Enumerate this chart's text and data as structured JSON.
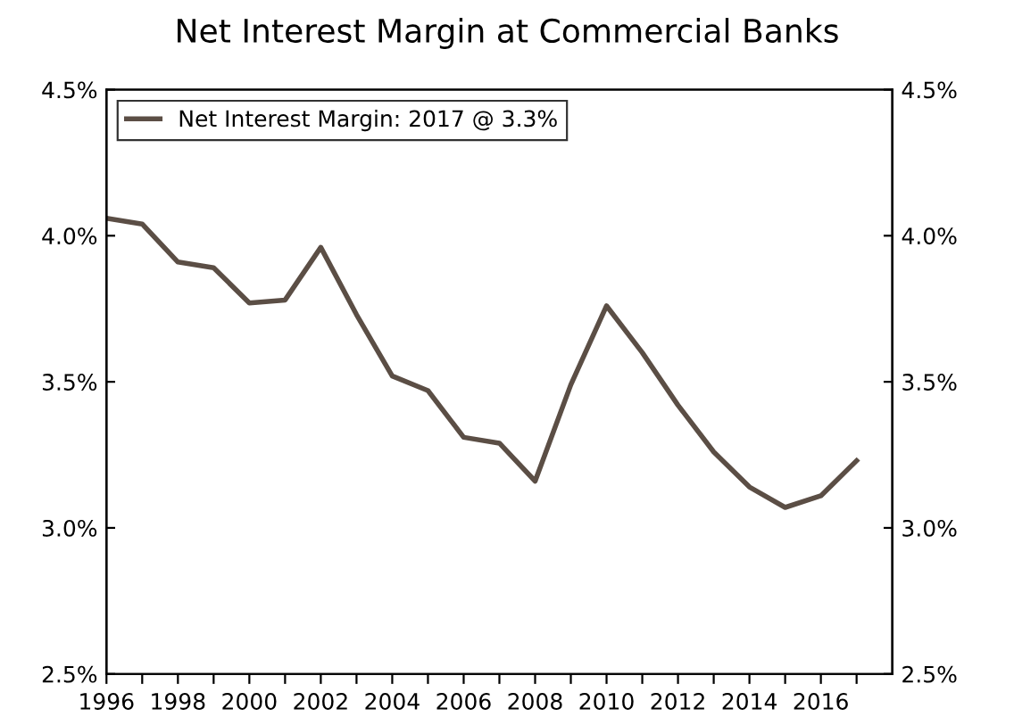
{
  "chart_data": {
    "type": "line",
    "title": "Net Interest Margin at Commercial Banks",
    "x": [
      1996,
      1997,
      1998,
      1999,
      2000,
      2001,
      2002,
      2003,
      2004,
      2005,
      2006,
      2007,
      2008,
      2009,
      2010,
      2011,
      2012,
      2013,
      2014,
      2015,
      2016,
      2017
    ],
    "series": [
      {
        "name": "Net Interest Margin: 2017 @ 3.3%",
        "color": "#5b4e45",
        "values": [
          4.06,
          4.04,
          3.91,
          3.89,
          3.77,
          3.78,
          3.96,
          3.73,
          3.52,
          3.47,
          3.31,
          3.29,
          3.16,
          3.49,
          3.76,
          3.6,
          3.42,
          3.26,
          3.14,
          3.07,
          3.11,
          3.23
        ]
      }
    ],
    "xlim": [
      1996,
      2018
    ],
    "xticks": [
      1996,
      {
        "value": 1997,
        "label": null
      },
      1998,
      {
        "value": 1999,
        "label": null
      },
      2000,
      {
        "value": 2001,
        "label": null
      },
      2002,
      {
        "value": 2003,
        "label": null
      },
      2004,
      {
        "value": 2005,
        "label": null
      },
      2006,
      {
        "value": 2007,
        "label": null
      },
      2008,
      {
        "value": 2009,
        "label": null
      },
      2010,
      {
        "value": 2011,
        "label": null
      },
      2012,
      {
        "value": 2013,
        "label": null
      },
      2014,
      {
        "value": 2015,
        "label": null
      },
      2016,
      {
        "value": 2017,
        "label": null
      }
    ],
    "ylim": [
      2.5,
      4.5
    ],
    "yticks": [
      {
        "value": 2.5,
        "label": "2.5%"
      },
      {
        "value": 3.0,
        "label": "3.0%"
      },
      {
        "value": 3.5,
        "label": "3.5%"
      },
      {
        "value": 4.0,
        "label": "4.0%"
      },
      {
        "value": 4.5,
        "label": "4.5%"
      }
    ],
    "y2lim": [
      2.5,
      4.5
    ],
    "y2ticks": [
      {
        "value": 2.5,
        "label": "2.5%"
      },
      {
        "value": 3.0,
        "label": "3.0%"
      },
      {
        "value": 3.5,
        "label": "3.5%"
      },
      {
        "value": 4.0,
        "label": "4.0%"
      },
      {
        "value": 4.5,
        "label": "4.5%"
      }
    ],
    "legend": "top left",
    "grid": false,
    "marker": "none",
    "line_style": "solid"
  }
}
